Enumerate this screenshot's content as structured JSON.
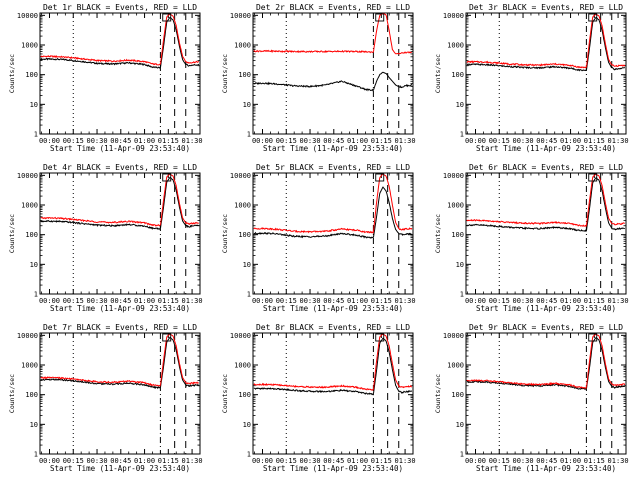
{
  "figure": {
    "panel_title_suffix": "BLACK = Events, RED = LLD",
    "x_axis_title": "Start Time (11-Apr-09 23:53:40)",
    "y_axis_title": "Counts/sec",
    "x_tick_labels": [
      "00:00",
      "00:15",
      "00:30",
      "00:45",
      "01:00",
      "01:15",
      "01:30"
    ],
    "y_tick_labels": [
      "1",
      "10",
      "100",
      "1000",
      "10000"
    ],
    "colors": {
      "events": "#000000",
      "lld": "#ff0000",
      "frame": "#000000",
      "background": "#ffffff"
    }
  },
  "chart_data": [
    {
      "type": "line",
      "title": "Det 1r  BLACK = Events, RED = LLD",
      "xlabel": "Start Time (11-Apr-09 23:53:40)",
      "ylabel": "Counts/sec",
      "y_scale": "log",
      "ylim": [
        1,
        12000
      ],
      "x_unit": "minutes",
      "xlim": [
        -6,
        95
      ],
      "grid": false,
      "x": [
        -6,
        0,
        5,
        10,
        15,
        20,
        30,
        40,
        50,
        60,
        65,
        70,
        72,
        74,
        76,
        78,
        80,
        82,
        84,
        86,
        88,
        90,
        95
      ],
      "series": [
        {
          "name": "Events",
          "color": "#000000",
          "values": [
            330,
            335,
            330,
            320,
            300,
            280,
            240,
            230,
            250,
            220,
            180,
            170,
            900,
            6000,
            8500,
            7000,
            3200,
            900,
            320,
            220,
            200,
            210,
            220
          ]
        },
        {
          "name": "LLD",
          "color": "#ff0000",
          "values": [
            410,
            415,
            405,
            390,
            370,
            345,
            300,
            285,
            310,
            275,
            230,
            220,
            1500,
            9000,
            11000,
            9500,
            4500,
            1200,
            420,
            270,
            250,
            260,
            275
          ]
        }
      ],
      "vertical_lines": [
        {
          "x": 15,
          "style": "dotted"
        },
        {
          "x": 70,
          "style": "dashdot"
        },
        {
          "x": 79,
          "style": "dashed"
        },
        {
          "x": 86,
          "style": "dashed"
        }
      ],
      "marker_box_x": 74
    },
    {
      "type": "line",
      "title": "Det 2r  BLACK = Events, RED = LLD",
      "xlabel": "Start Time (11-Apr-09 23:53:40)",
      "ylabel": "Counts/sec",
      "y_scale": "log",
      "ylim": [
        1,
        12000
      ],
      "x_unit": "minutes",
      "xlim": [
        -6,
        95
      ],
      "grid": false,
      "x": [
        -6,
        0,
        5,
        10,
        15,
        20,
        30,
        40,
        50,
        60,
        65,
        70,
        72,
        74,
        76,
        78,
        80,
        82,
        84,
        86,
        88,
        90,
        95
      ],
      "series": [
        {
          "name": "Events",
          "color": "#000000",
          "values": [
            50,
            52,
            50,
            48,
            45,
            42,
            40,
            45,
            60,
            40,
            32,
            30,
            60,
            100,
            120,
            110,
            80,
            60,
            45,
            40,
            38,
            42,
            45
          ]
        },
        {
          "name": "LLD",
          "color": "#ff0000",
          "values": [
            620,
            625,
            620,
            615,
            610,
            605,
            600,
            605,
            610,
            600,
            590,
            580,
            3000,
            10000,
            11500,
            10500,
            3000,
            700,
            500,
            520,
            540,
            560,
            570
          ]
        }
      ],
      "vertical_lines": [
        {
          "x": 15,
          "style": "dotted"
        },
        {
          "x": 70,
          "style": "dashdot"
        },
        {
          "x": 79,
          "style": "dashed"
        },
        {
          "x": 86,
          "style": "dashed"
        }
      ],
      "marker_box_x": 74
    },
    {
      "type": "line",
      "title": "Det 3r  BLACK = Events, RED = LLD",
      "xlabel": "Start Time (11-Apr-09 23:53:40)",
      "ylabel": "Counts/sec",
      "y_scale": "log",
      "ylim": [
        1,
        12000
      ],
      "x_unit": "minutes",
      "xlim": [
        -6,
        95
      ],
      "grid": false,
      "x": [
        -6,
        0,
        5,
        10,
        15,
        20,
        30,
        40,
        50,
        60,
        65,
        70,
        72,
        74,
        76,
        78,
        80,
        82,
        84,
        86,
        88,
        90,
        95
      ],
      "series": [
        {
          "name": "Events",
          "color": "#000000",
          "values": [
            220,
            222,
            218,
            210,
            200,
            190,
            175,
            170,
            185,
            165,
            145,
            140,
            800,
            6000,
            8500,
            7000,
            3000,
            800,
            260,
            170,
            150,
            160,
            170
          ]
        },
        {
          "name": "LLD",
          "color": "#ff0000",
          "values": [
            270,
            272,
            268,
            258,
            245,
            232,
            215,
            210,
            228,
            205,
            180,
            175,
            1400,
            9000,
            11000,
            9500,
            4300,
            1100,
            330,
            210,
            190,
            200,
            210
          ]
        }
      ],
      "vertical_lines": [
        {
          "x": 15,
          "style": "dotted"
        },
        {
          "x": 70,
          "style": "dashdot"
        },
        {
          "x": 79,
          "style": "dashed"
        },
        {
          "x": 86,
          "style": "dashed"
        }
      ],
      "marker_box_x": 74
    },
    {
      "type": "line",
      "title": "Det 4r  BLACK = Events, RED = LLD",
      "xlabel": "Start Time (11-Apr-09 23:53:40)",
      "ylabel": "Counts/sec",
      "y_scale": "log",
      "ylim": [
        1,
        12000
      ],
      "x_unit": "minutes",
      "xlim": [
        -6,
        95
      ],
      "grid": false,
      "x": [
        -6,
        0,
        5,
        10,
        15,
        20,
        30,
        40,
        50,
        60,
        65,
        70,
        72,
        74,
        76,
        78,
        80,
        82,
        84,
        86,
        88,
        90,
        95
      ],
      "series": [
        {
          "name": "Events",
          "color": "#000000",
          "values": [
            280,
            285,
            280,
            270,
            255,
            240,
            210,
            200,
            220,
            195,
            165,
            160,
            850,
            6000,
            8500,
            7000,
            3100,
            850,
            290,
            200,
            185,
            195,
            205
          ]
        },
        {
          "name": "LLD",
          "color": "#ff0000",
          "values": [
            360,
            365,
            358,
            345,
            325,
            305,
            270,
            258,
            282,
            250,
            212,
            205,
            1450,
            9000,
            11000,
            9500,
            4400,
            1150,
            370,
            250,
            230,
            240,
            252
          ]
        }
      ],
      "vertical_lines": [
        {
          "x": 15,
          "style": "dotted"
        },
        {
          "x": 70,
          "style": "dashdot"
        },
        {
          "x": 79,
          "style": "dashed"
        },
        {
          "x": 86,
          "style": "dashed"
        }
      ],
      "marker_box_x": 74
    },
    {
      "type": "line",
      "title": "Det 5r  BLACK = Events, RED = LLD",
      "xlabel": "Start Time (11-Apr-09 23:53:40)",
      "ylabel": "Counts/sec",
      "y_scale": "log",
      "ylim": [
        1,
        12000
      ],
      "x_unit": "minutes",
      "xlim": [
        -6,
        95
      ],
      "grid": false,
      "x": [
        -6,
        0,
        5,
        10,
        15,
        20,
        30,
        40,
        50,
        60,
        65,
        70,
        72,
        74,
        76,
        78,
        80,
        82,
        84,
        86,
        88,
        90,
        95
      ],
      "series": [
        {
          "name": "Events",
          "color": "#000000",
          "values": [
            110,
            112,
            110,
            105,
            95,
            88,
            85,
            90,
            110,
            95,
            82,
            80,
            400,
            2500,
            4000,
            3000,
            1200,
            350,
            150,
            110,
            100,
            105,
            110
          ]
        },
        {
          "name": "LLD",
          "color": "#ff0000",
          "values": [
            160,
            162,
            158,
            150,
            140,
            130,
            125,
            130,
            155,
            140,
            122,
            120,
            1200,
            8500,
            11000,
            9500,
            4200,
            1000,
            260,
            160,
            150,
            155,
            160
          ]
        }
      ],
      "vertical_lines": [
        {
          "x": 15,
          "style": "dotted"
        },
        {
          "x": 70,
          "style": "dashdot"
        },
        {
          "x": 79,
          "style": "dashed"
        },
        {
          "x": 86,
          "style": "dashed"
        }
      ],
      "marker_box_x": 74
    },
    {
      "type": "line",
      "title": "Det 6r  BLACK = Events, RED = LLD",
      "xlabel": "Start Time (11-Apr-09 23:53:40)",
      "ylabel": "Counts/sec",
      "y_scale": "log",
      "ylim": [
        1,
        12000
      ],
      "x_unit": "minutes",
      "xlim": [
        -6,
        95
      ],
      "grid": false,
      "x": [
        -6,
        0,
        5,
        10,
        15,
        20,
        30,
        40,
        50,
        60,
        65,
        70,
        72,
        74,
        76,
        78,
        80,
        82,
        84,
        86,
        88,
        90,
        95
      ],
      "series": [
        {
          "name": "Events",
          "color": "#000000",
          "values": [
            210,
            212,
            208,
            200,
            190,
            180,
            165,
            160,
            175,
            158,
            140,
            135,
            780,
            5800,
            8300,
            6800,
            2900,
            780,
            250,
            165,
            150,
            158,
            165
          ]
        },
        {
          "name": "LLD",
          "color": "#ff0000",
          "values": [
            300,
            305,
            298,
            288,
            275,
            262,
            245,
            240,
            262,
            238,
            205,
            198,
            1450,
            9000,
            11000,
            9500,
            4400,
            1150,
            360,
            240,
            220,
            230,
            240
          ]
        }
      ],
      "vertical_lines": [
        {
          "x": 15,
          "style": "dotted"
        },
        {
          "x": 70,
          "style": "dashdot"
        },
        {
          "x": 79,
          "style": "dashed"
        },
        {
          "x": 86,
          "style": "dashed"
        }
      ],
      "marker_box_x": 74
    },
    {
      "type": "line",
      "title": "Det 7r  BLACK = Events, RED = LLD",
      "xlabel": "Start Time (11-Apr-09 23:53:40)",
      "ylabel": "Counts/sec",
      "y_scale": "log",
      "ylim": [
        1,
        12000
      ],
      "x_unit": "minutes",
      "xlim": [
        -6,
        95
      ],
      "grid": false,
      "x": [
        -6,
        0,
        5,
        10,
        15,
        20,
        30,
        40,
        50,
        60,
        65,
        70,
        72,
        74,
        76,
        78,
        80,
        82,
        84,
        86,
        88,
        90,
        95
      ],
      "series": [
        {
          "name": "Events",
          "color": "#000000",
          "values": [
            320,
            325,
            320,
            310,
            292,
            275,
            235,
            225,
            245,
            215,
            180,
            172,
            880,
            6000,
            8500,
            7000,
            3200,
            880,
            310,
            215,
            195,
            205,
            215
          ]
        },
        {
          "name": "LLD",
          "color": "#ff0000",
          "values": [
            370,
            375,
            368,
            355,
            335,
            315,
            272,
            262,
            285,
            252,
            212,
            205,
            1450,
            9000,
            11000,
            9500,
            4400,
            1150,
            380,
            255,
            235,
            245,
            255
          ]
        }
      ],
      "vertical_lines": [
        {
          "x": 15,
          "style": "dotted"
        },
        {
          "x": 70,
          "style": "dashdot"
        },
        {
          "x": 79,
          "style": "dashed"
        },
        {
          "x": 86,
          "style": "dashed"
        }
      ],
      "marker_box_x": 74
    },
    {
      "type": "line",
      "title": "Det 8r  BLACK = Events, RED = LLD",
      "xlabel": "Start Time (11-Apr-09 23:53:40)",
      "ylabel": "Counts/sec",
      "y_scale": "log",
      "ylim": [
        1,
        12000
      ],
      "x_unit": "minutes",
      "xlim": [
        -6,
        95
      ],
      "grid": false,
      "x": [
        -6,
        0,
        5,
        10,
        15,
        20,
        30,
        40,
        50,
        60,
        65,
        70,
        72,
        74,
        76,
        78,
        80,
        82,
        84,
        86,
        88,
        90,
        95
      ],
      "series": [
        {
          "name": "Events",
          "color": "#000000",
          "values": [
            160,
            162,
            160,
            155,
            148,
            140,
            130,
            128,
            140,
            125,
            110,
            105,
            650,
            5500,
            8000,
            6500,
            2700,
            700,
            210,
            130,
            118,
            125,
            130
          ]
        },
        {
          "name": "LLD",
          "color": "#ff0000",
          "values": [
            220,
            222,
            218,
            212,
            202,
            192,
            180,
            178,
            198,
            175,
            152,
            148,
            1350,
            9000,
            11000,
            9500,
            4300,
            1100,
            320,
            195,
            178,
            188,
            195
          ]
        }
      ],
      "vertical_lines": [
        {
          "x": 15,
          "style": "dotted"
        },
        {
          "x": 70,
          "style": "dashdot"
        },
        {
          "x": 79,
          "style": "dashed"
        },
        {
          "x": 86,
          "style": "dashed"
        }
      ],
      "marker_box_x": 74
    },
    {
      "type": "line",
      "title": "Det 9r  BLACK = Events, RED = LLD",
      "xlabel": "Start Time (11-Apr-09 23:53:40)",
      "ylabel": "Counts/sec",
      "y_scale": "log",
      "ylim": [
        1,
        12000
      ],
      "x_unit": "minutes",
      "xlim": [
        -6,
        95
      ],
      "grid": false,
      "x": [
        -6,
        0,
        5,
        10,
        15,
        20,
        30,
        40,
        50,
        60,
        65,
        70,
        72,
        74,
        76,
        78,
        80,
        82,
        84,
        86,
        88,
        90,
        95
      ],
      "series": [
        {
          "name": "Events",
          "color": "#000000",
          "values": [
            270,
            272,
            268,
            258,
            245,
            232,
            205,
            196,
            215,
            190,
            160,
            155,
            820,
            5900,
            8400,
            6900,
            3000,
            820,
            280,
            190,
            175,
            185,
            195
          ]
        },
        {
          "name": "LLD",
          "color": "#ff0000",
          "values": [
            300,
            302,
            298,
            288,
            272,
            258,
            228,
            218,
            240,
            212,
            178,
            172,
            1400,
            9000,
            11000,
            9500,
            4300,
            1100,
            340,
            225,
            205,
            215,
            225
          ]
        }
      ],
      "vertical_lines": [
        {
          "x": 15,
          "style": "dotted"
        },
        {
          "x": 70,
          "style": "dashdot"
        },
        {
          "x": 79,
          "style": "dashed"
        },
        {
          "x": 86,
          "style": "dashed"
        }
      ],
      "marker_box_x": 74
    }
  ]
}
